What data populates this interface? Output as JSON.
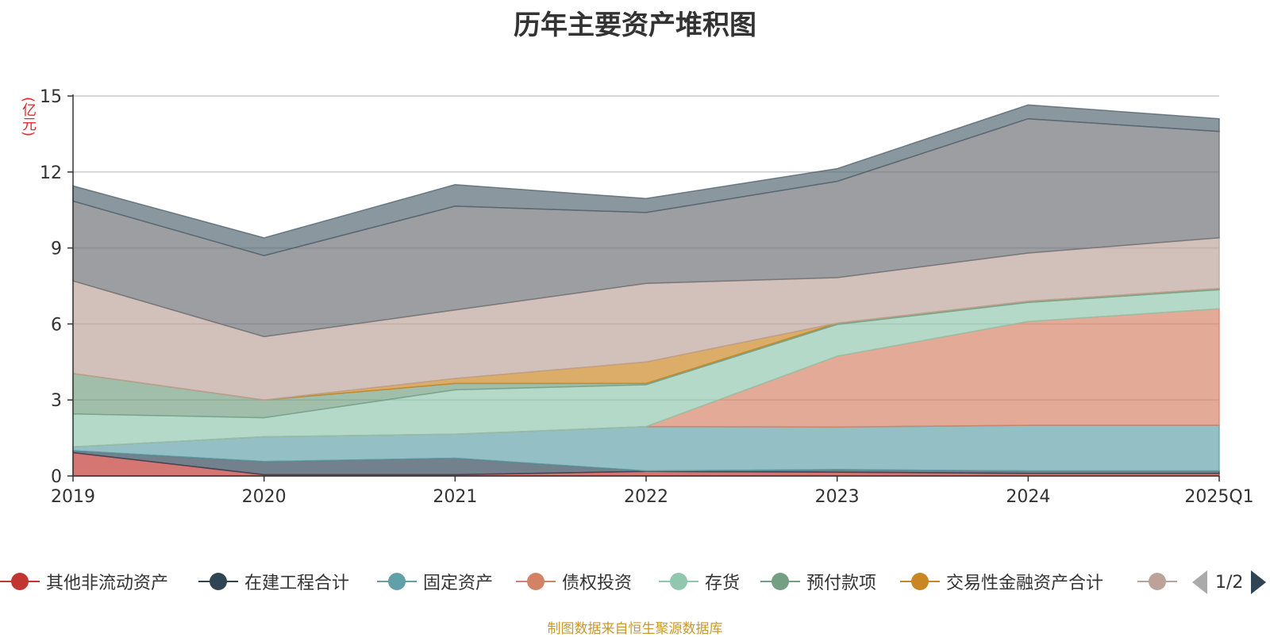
{
  "chart_data": {
    "type": "area",
    "stacked": true,
    "title": "历年主要资产堆积图",
    "ylabel": "(亿元)",
    "categories": [
      "2019",
      "2020",
      "2021",
      "2022",
      "2023",
      "2024",
      "2025Q1"
    ],
    "yticks": [
      "0",
      "3",
      "6",
      "9",
      "12",
      "15"
    ],
    "ylim": [
      0,
      15
    ],
    "grid": true,
    "legend": "bottom",
    "series": [
      {
        "name": "其他非流动资产",
        "color": "#c23531",
        "values": [
          0.92,
          0.05,
          0.05,
          0.18,
          0.15,
          0.1,
          0.1
        ]
      },
      {
        "name": "在建工程合计",
        "color": "#2f4554",
        "values": [
          0.08,
          0.52,
          0.65,
          0.02,
          0.1,
          0.1,
          0.1
        ]
      },
      {
        "name": "固定资产",
        "color": "#61a0a8",
        "values": [
          0.15,
          0.98,
          0.95,
          1.75,
          1.68,
          1.8,
          1.8
        ]
      },
      {
        "name": "债权投资",
        "color": "#d48265",
        "values": [
          0.0,
          0.0,
          0.0,
          0.0,
          2.8,
          4.1,
          4.6
        ]
      },
      {
        "name": "存货",
        "color": "#91c7ae",
        "values": [
          1.3,
          0.75,
          1.75,
          1.65,
          1.25,
          0.75,
          0.75
        ]
      },
      {
        "name": "预付款项",
        "color": "#749f83",
        "values": [
          1.6,
          0.7,
          0.25,
          0.05,
          0.05,
          0.05,
          0.05
        ]
      },
      {
        "name": "交易性金融资产合计",
        "color": "#ca8622",
        "values": [
          0.0,
          0.0,
          0.2,
          0.85,
          0.0,
          0.0,
          0.0
        ]
      },
      {
        "name": "",
        "color": "#bda29a",
        "values": [
          3.65,
          2.5,
          2.7,
          3.1,
          1.8,
          1.9,
          2.0
        ]
      },
      {
        "name": "",
        "color": "#6e7074",
        "values": [
          3.15,
          3.2,
          4.1,
          2.8,
          3.8,
          5.3,
          4.2
        ]
      },
      {
        "name": "",
        "color": "#546570",
        "values": [
          0.6,
          0.7,
          0.85,
          0.55,
          0.5,
          0.55,
          0.5
        ]
      }
    ]
  },
  "legend_page": "1/2",
  "source": "制图数据来自恒生聚源数据库"
}
